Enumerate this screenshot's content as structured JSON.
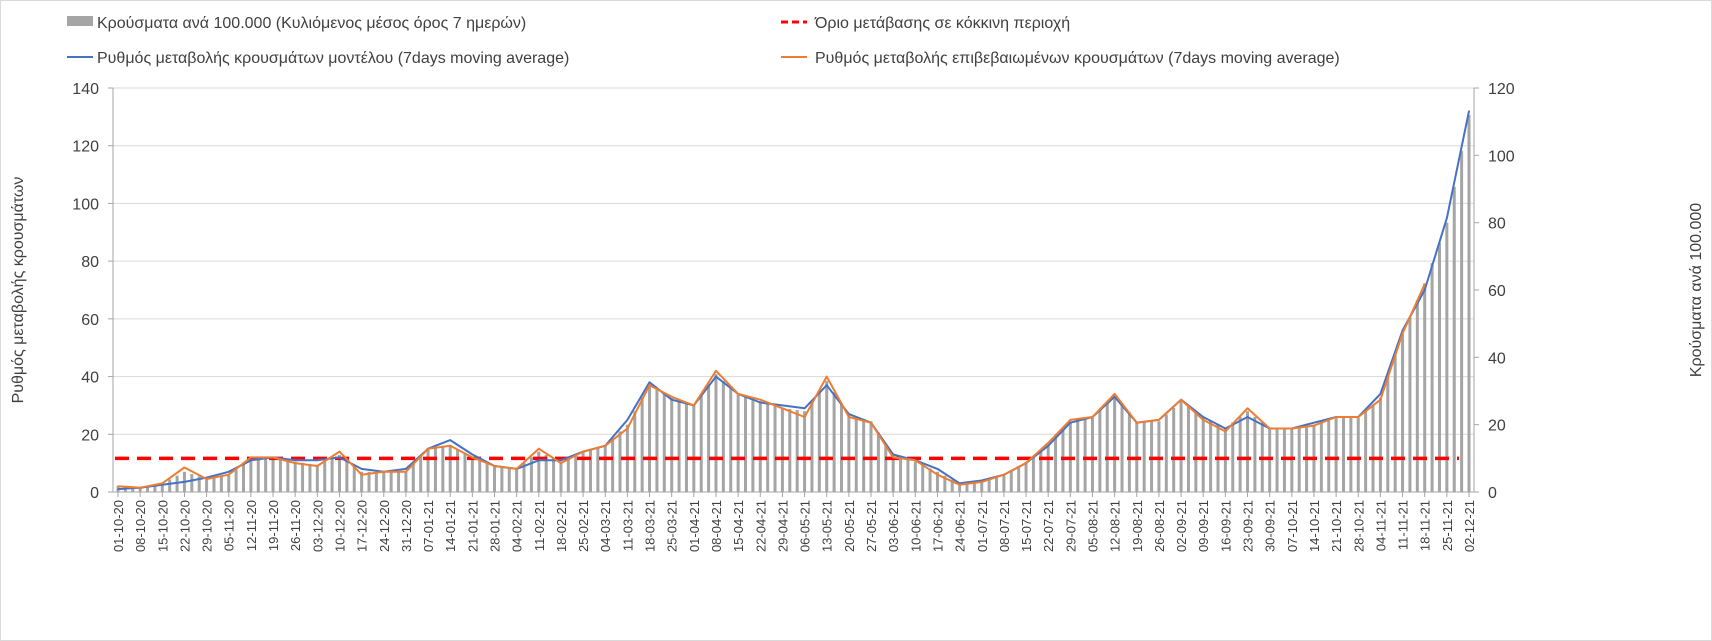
{
  "chart_data": {
    "type": "bar+line",
    "legend": {
      "bars": "Κρούσματα ανά 100.000 (Κυλιόμενος μέσος όρος 7 ημερών)",
      "threshold": "Όριο μετάβασης σε κόκκινη περιοχή",
      "model": "Ρυθμός μεταβολής κρουσμάτων μοντέλου (7days moving average)",
      "confirmed": "Ρυθμός μεταβολής επιβεβαιωμένων κρουσμάτων (7days moving average)"
    },
    "ylabel_left": "Ρυθμός μεταβολής κρουσμάτων",
    "ylabel_right": "Κρούσματα ανά 100.000",
    "ylim_left": [
      0,
      140
    ],
    "yticks_left": [
      0,
      20,
      40,
      60,
      80,
      100,
      120,
      140
    ],
    "ylim_right": [
      0,
      120
    ],
    "yticks_right": [
      0,
      20,
      40,
      60,
      80,
      100,
      120
    ],
    "threshold_right": 10,
    "grid": true,
    "categories": [
      "01-10-20",
      "08-10-20",
      "15-10-20",
      "22-10-20",
      "29-10-20",
      "05-11-20",
      "12-11-20",
      "19-11-20",
      "26-11-20",
      "03-12-20",
      "10-12-20",
      "17-12-20",
      "24-12-20",
      "31-12-20",
      "07-01-21",
      "14-01-21",
      "21-01-21",
      "28-01-21",
      "04-02-21",
      "11-02-21",
      "18-02-21",
      "25-02-21",
      "04-03-21",
      "11-03-21",
      "18-03-21",
      "25-03-21",
      "01-04-21",
      "08-04-21",
      "15-04-21",
      "22-04-21",
      "29-04-21",
      "06-05-21",
      "13-05-21",
      "20-05-21",
      "27-05-21",
      "03-06-21",
      "10-06-21",
      "17-06-21",
      "24-06-21",
      "01-07-21",
      "08-07-21",
      "15-07-21",
      "22-07-21",
      "29-07-21",
      "05-08-21",
      "12-08-21",
      "19-08-21",
      "26-08-21",
      "02-09-21",
      "09-09-21",
      "16-09-21",
      "23-09-21",
      "30-09-21",
      "07-10-21",
      "14-10-21",
      "21-10-21",
      "28-10-21",
      "04-11-21",
      "11-11-21",
      "18-11-21",
      "25-11-21",
      "02-12-21"
    ],
    "series": [
      {
        "name": "bars",
        "axis": "right",
        "values": [
          1.7,
          1.3,
          2.6,
          6,
          4,
          5,
          10,
          10,
          9,
          8,
          11,
          6,
          6,
          6,
          13,
          14,
          10,
          8,
          7,
          12,
          9,
          12,
          14,
          20,
          32,
          28,
          26,
          35,
          29,
          27,
          25,
          24,
          33,
          23,
          21,
          11,
          9,
          6,
          2.5,
          3,
          5,
          9,
          14,
          21,
          22,
          29,
          21,
          21,
          27,
          22,
          19,
          24,
          19,
          19,
          20,
          22,
          22,
          28,
          47,
          62,
          80,
          112
        ]
      },
      {
        "name": "model",
        "axis": "left",
        "color": "#4472c4",
        "values": [
          1,
          1.5,
          2.5,
          3.5,
          5,
          7,
          11,
          12,
          11,
          11,
          12,
          8,
          7,
          8,
          15,
          18,
          13,
          9,
          8,
          11,
          11,
          14,
          16,
          25,
          38,
          32,
          30,
          40,
          34,
          31,
          30,
          29,
          37,
          27,
          24,
          13,
          11,
          8,
          3,
          4,
          6,
          10,
          16,
          24,
          26,
          33,
          24,
          25,
          32,
          26,
          22,
          26,
          22,
          22,
          24,
          26,
          26,
          34,
          56,
          70,
          95,
          132
        ]
      },
      {
        "name": "confirmed",
        "axis": "left",
        "color": "#ed7d31",
        "values": [
          2,
          1.5,
          3,
          8.5,
          4.5,
          6,
          12,
          12,
          10,
          9,
          14,
          6,
          7,
          7,
          15,
          16,
          12,
          9,
          8,
          15,
          10,
          14,
          16,
          22,
          37,
          33,
          30,
          42,
          34,
          32,
          29,
          26,
          40,
          26,
          24,
          12,
          11,
          6,
          2.5,
          3.5,
          6,
          10,
          17,
          25,
          26,
          34,
          24,
          25,
          32,
          25,
          21,
          29,
          22,
          22,
          23,
          26,
          26,
          32,
          55,
          72,
          null,
          null
        ]
      }
    ]
  }
}
